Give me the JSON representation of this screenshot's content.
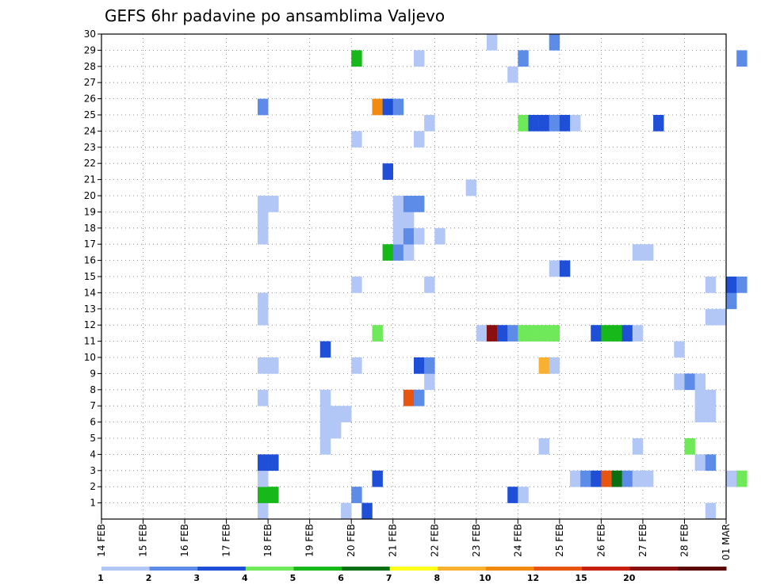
{
  "chart_data": {
    "type": "heatmap",
    "title": "GEFS 6hr padavine po ansamblima Valjevo",
    "xlabel": "",
    "ylabel": "",
    "x_ticks": [
      "14 FEB",
      "15 FEB",
      "16 FEB",
      "17 FEB",
      "18 FEB",
      "19 FEB",
      "20 FEB",
      "21 FEB",
      "22 FEB",
      "23 FEB",
      "24 FEB",
      "25 FEB",
      "26 FEB",
      "27 FEB",
      "28 FEB",
      "01 MAR"
    ],
    "y_ticks": [
      "1",
      "2",
      "3",
      "4",
      "5",
      "6",
      "7",
      "8",
      "9",
      "10",
      "11",
      "12",
      "13",
      "14",
      "15",
      "16",
      "17",
      "18",
      "19",
      "20",
      "21",
      "22",
      "23",
      "24",
      "25",
      "26",
      "27",
      "28",
      "29",
      "30"
    ],
    "xlim_days": [
      0,
      15
    ],
    "ylim": [
      0,
      30
    ],
    "step_hours": 6,
    "grid": true,
    "colorbar": {
      "labels": [
        "1",
        "2",
        "3",
        "4",
        "5",
        "6",
        "7",
        "8",
        "10",
        "12",
        "15",
        "20"
      ],
      "colors": [
        "#b3c7f7",
        "#5c8ce8",
        "#1f4fd6",
        "#6fe85a",
        "#16b81a",
        "#0a6e12",
        "#ffff1a",
        "#f7b030",
        "#f28a10",
        "#e85510",
        "#c82010",
        "#8a1010",
        "#5a0808"
      ]
    },
    "cells": [
      [
        3.75,
        0,
        0
      ],
      [
        3.75,
        1,
        4
      ],
      [
        3.75,
        2,
        0
      ],
      [
        3.75,
        3,
        2
      ],
      [
        3.75,
        7,
        0
      ],
      [
        3.75,
        9,
        0
      ],
      [
        3.75,
        12,
        0
      ],
      [
        3.75,
        13,
        0
      ],
      [
        3.75,
        17,
        0
      ],
      [
        3.75,
        18,
        0
      ],
      [
        3.75,
        19,
        0
      ],
      [
        3.75,
        25,
        1
      ],
      [
        4.0,
        1,
        4
      ],
      [
        4.0,
        3,
        2
      ],
      [
        4.0,
        9,
        0
      ],
      [
        4.0,
        19,
        0
      ],
      [
        5.25,
        4,
        0
      ],
      [
        5.25,
        5,
        0
      ],
      [
        5.25,
        6,
        0
      ],
      [
        5.25,
        7,
        0
      ],
      [
        5.25,
        10,
        2
      ],
      [
        5.5,
        5,
        0
      ],
      [
        5.5,
        6,
        0
      ],
      [
        5.75,
        0,
        0
      ],
      [
        5.75,
        6,
        0
      ],
      [
        6.0,
        1,
        1
      ],
      [
        6.0,
        9,
        0
      ],
      [
        6.0,
        14,
        0
      ],
      [
        6.0,
        23,
        0
      ],
      [
        6.0,
        28,
        4
      ],
      [
        6.25,
        0,
        2
      ],
      [
        6.5,
        2,
        2
      ],
      [
        6.5,
        11,
        3
      ],
      [
        6.5,
        25,
        8
      ],
      [
        6.75,
        16,
        4
      ],
      [
        6.75,
        21,
        2
      ],
      [
        6.75,
        25,
        2
      ],
      [
        7.0,
        16,
        1
      ],
      [
        7.0,
        17,
        0
      ],
      [
        7.0,
        18,
        0
      ],
      [
        7.0,
        19,
        0
      ],
      [
        7.0,
        25,
        1
      ],
      [
        7.25,
        7,
        9
      ],
      [
        7.25,
        16,
        0
      ],
      [
        7.25,
        17,
        1
      ],
      [
        7.25,
        18,
        0
      ],
      [
        7.25,
        19,
        1
      ],
      [
        7.5,
        7,
        1
      ],
      [
        7.5,
        9,
        2
      ],
      [
        7.5,
        17,
        0
      ],
      [
        7.5,
        19,
        1
      ],
      [
        7.5,
        23,
        0
      ],
      [
        7.5,
        28,
        0
      ],
      [
        7.75,
        8,
        0
      ],
      [
        7.75,
        9,
        1
      ],
      [
        7.75,
        14,
        0
      ],
      [
        7.75,
        24,
        0
      ],
      [
        8.0,
        17,
        0
      ],
      [
        8.75,
        20,
        0
      ],
      [
        9.0,
        11,
        0
      ],
      [
        9.25,
        11,
        11
      ],
      [
        9.25,
        29,
        0
      ],
      [
        9.5,
        11,
        2
      ],
      [
        9.75,
        1,
        2
      ],
      [
        9.75,
        11,
        1
      ],
      [
        9.75,
        27,
        0
      ],
      [
        10.0,
        1,
        0
      ],
      [
        10.0,
        11,
        3
      ],
      [
        10.0,
        24,
        3
      ],
      [
        10.0,
        28,
        1
      ],
      [
        10.25,
        11,
        3
      ],
      [
        10.25,
        24,
        2
      ],
      [
        10.5,
        4,
        0
      ],
      [
        10.5,
        9,
        7
      ],
      [
        10.5,
        11,
        3
      ],
      [
        10.5,
        24,
        2
      ],
      [
        10.75,
        9,
        0
      ],
      [
        10.75,
        11,
        3
      ],
      [
        10.75,
        15,
        0
      ],
      [
        10.75,
        24,
        1
      ],
      [
        10.75,
        29,
        1
      ],
      [
        11.0,
        15,
        2
      ],
      [
        11.0,
        24,
        2
      ],
      [
        11.25,
        2,
        0
      ],
      [
        11.25,
        24,
        0
      ],
      [
        11.5,
        2,
        1
      ],
      [
        11.75,
        2,
        2
      ],
      [
        11.75,
        11,
        2
      ],
      [
        12.0,
        2,
        9
      ],
      [
        12.0,
        11,
        4
      ],
      [
        12.25,
        2,
        5
      ],
      [
        12.25,
        11,
        4
      ],
      [
        12.5,
        2,
        1
      ],
      [
        12.5,
        11,
        2
      ],
      [
        12.75,
        2,
        0
      ],
      [
        12.75,
        4,
        0
      ],
      [
        12.75,
        11,
        0
      ],
      [
        12.75,
        16,
        0
      ],
      [
        13.0,
        2,
        0
      ],
      [
        13.0,
        16,
        0
      ],
      [
        13.25,
        24,
        2
      ],
      [
        13.75,
        8,
        0
      ],
      [
        13.75,
        10,
        0
      ],
      [
        14.0,
        4,
        3
      ],
      [
        14.0,
        8,
        1
      ],
      [
        14.25,
        3,
        0
      ],
      [
        14.25,
        6,
        0
      ],
      [
        14.25,
        7,
        0
      ],
      [
        14.25,
        8,
        0
      ],
      [
        14.5,
        0,
        0
      ],
      [
        14.5,
        3,
        1
      ],
      [
        14.5,
        6,
        0
      ],
      [
        14.5,
        7,
        0
      ],
      [
        14.5,
        12,
        0
      ],
      [
        14.5,
        14,
        0
      ],
      [
        14.75,
        12,
        0
      ],
      [
        15.0,
        2,
        0
      ],
      [
        15.0,
        13,
        1
      ],
      [
        15.0,
        14,
        2
      ],
      [
        15.25,
        2,
        3
      ],
      [
        15.25,
        14,
        1
      ],
      [
        15.25,
        28,
        1
      ]
    ]
  }
}
